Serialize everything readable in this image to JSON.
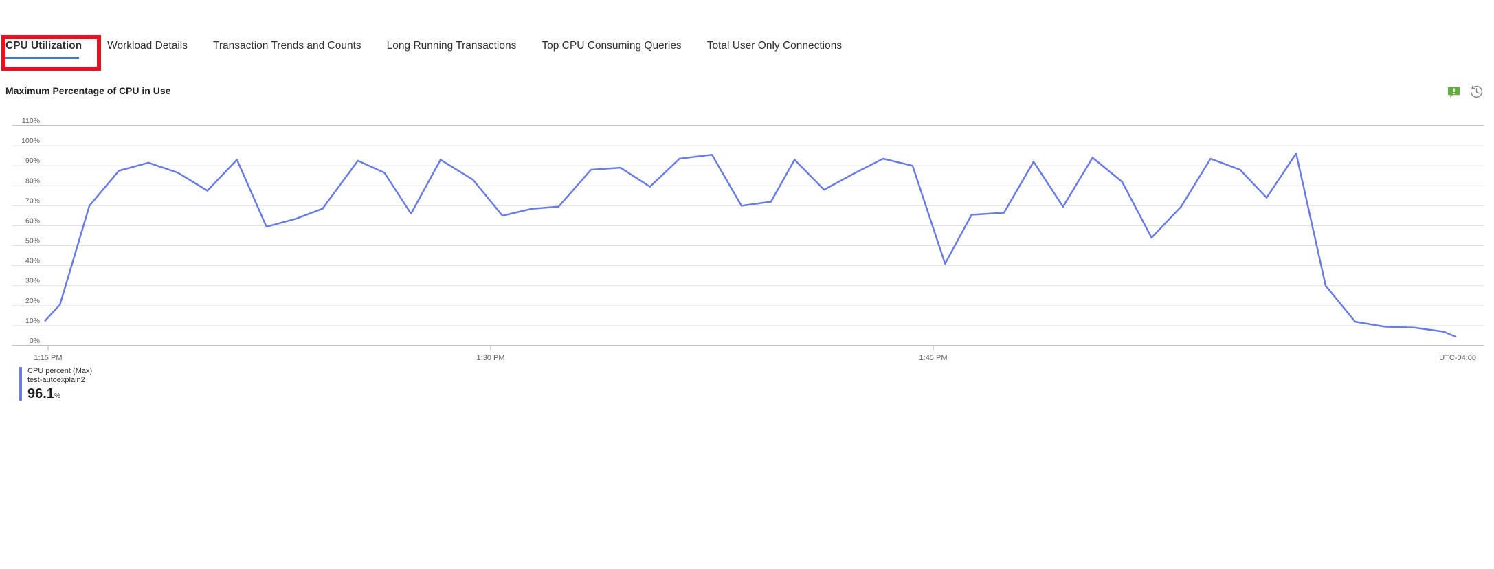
{
  "tabs": {
    "items": [
      {
        "label": "CPU Utilization",
        "selected": true
      },
      {
        "label": "Workload Details",
        "selected": false
      },
      {
        "label": "Transaction Trends and Counts",
        "selected": false
      },
      {
        "label": "Long Running Transactions",
        "selected": false
      },
      {
        "label": "Top CPU Consuming Queries",
        "selected": false
      },
      {
        "label": "Total User Only Connections",
        "selected": false
      }
    ],
    "selected_underline_color": "#4878be"
  },
  "annotation": {
    "shape": "rectangle-outline",
    "color": "#e81123",
    "target": "CPU Utilization tab"
  },
  "toolbar": {
    "icons": [
      {
        "name": "feedback-icon",
        "color": "#64ad3d"
      },
      {
        "name": "time-history-icon",
        "color": "#8a8886"
      }
    ]
  },
  "chart_data": {
    "type": "line",
    "title": "Maximum Percentage of CPU in Use",
    "xlabel": "",
    "ylabel": "CPU percent",
    "ylim": [
      0,
      110
    ],
    "ytick_step": 10,
    "ytick_suffix": "%",
    "grid": true,
    "legend_position": "bottom-left",
    "x_ticks": [
      {
        "label": "1:15 PM",
        "minute": 0
      },
      {
        "label": "1:30 PM",
        "minute": 15
      },
      {
        "label": "1:45 PM",
        "minute": 30
      }
    ],
    "timezone_label": "UTC-04:00",
    "line_color": "#697ce6",
    "series": [
      {
        "name": "CPU percent (Max)",
        "resource": "test-autoexplain2",
        "max_display": "96.1",
        "unit": "%",
        "points_unit": "minutes after 1:15 PM, percent",
        "points": [
          [
            -0.1,
            12.5
          ],
          [
            0.4,
            20.5
          ],
          [
            1.4,
            70
          ],
          [
            2.4,
            87.5
          ],
          [
            3.4,
            91.5
          ],
          [
            4.4,
            86.5
          ],
          [
            5.4,
            77.5
          ],
          [
            6.4,
            93
          ],
          [
            7.4,
            59.5
          ],
          [
            8.4,
            63.5
          ],
          [
            9.3,
            68.5
          ],
          [
            10.5,
            92.5
          ],
          [
            11.4,
            86.5
          ],
          [
            12.3,
            66
          ],
          [
            13.3,
            93
          ],
          [
            14.4,
            83
          ],
          [
            15.4,
            65
          ],
          [
            16.4,
            68.5
          ],
          [
            17.3,
            69.5
          ],
          [
            18.4,
            88
          ],
          [
            19.4,
            89
          ],
          [
            20.4,
            79.5
          ],
          [
            21.4,
            93.5
          ],
          [
            22.5,
            95.5
          ],
          [
            23.5,
            70
          ],
          [
            24.5,
            72
          ],
          [
            25.3,
            93
          ],
          [
            26.3,
            78
          ],
          [
            27.3,
            86
          ],
          [
            28.3,
            93.5
          ],
          [
            29.3,
            90
          ],
          [
            30.4,
            41
          ],
          [
            31.3,
            65.5
          ],
          [
            32.4,
            66.5
          ],
          [
            33.4,
            92
          ],
          [
            34.4,
            69.5
          ],
          [
            35.4,
            94
          ],
          [
            36.4,
            82
          ],
          [
            37.4,
            54
          ],
          [
            38.4,
            69.5
          ],
          [
            39.4,
            93.5
          ],
          [
            40.4,
            88
          ],
          [
            41.3,
            74
          ],
          [
            42.3,
            96.1
          ],
          [
            43.3,
            30
          ],
          [
            44.3,
            12
          ],
          [
            45.3,
            9.5
          ],
          [
            46.3,
            9
          ],
          [
            47.3,
            7
          ],
          [
            47.7,
            4.5
          ]
        ]
      }
    ]
  }
}
